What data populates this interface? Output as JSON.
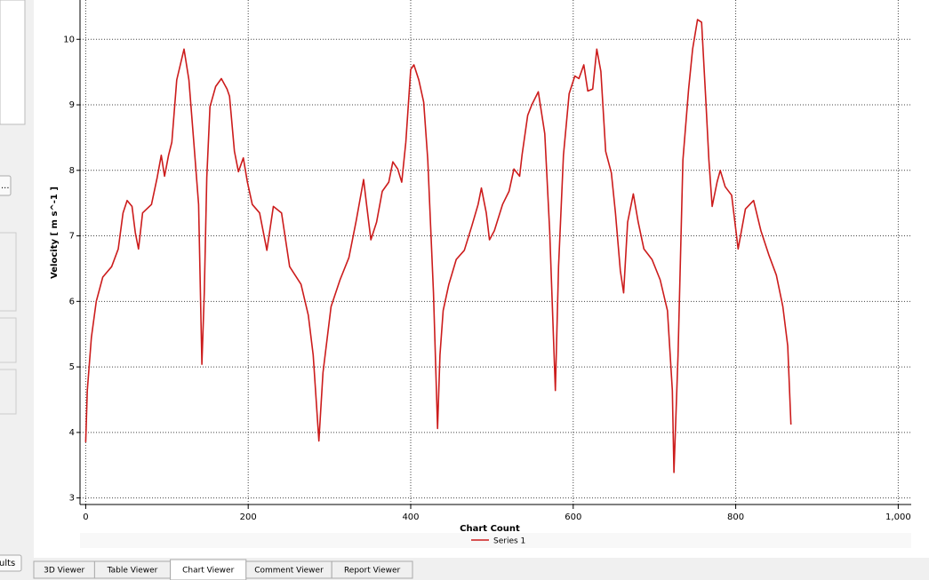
{
  "chart_data": {
    "type": "line",
    "x_label": "Chart Count",
    "y_label": "Velocity [ m s^-1 ]",
    "xlim": [
      -7,
      1016
    ],
    "ylim": [
      2.9,
      10.6
    ],
    "xticks": [
      0,
      200,
      400,
      600,
      800,
      {
        "value": 1000,
        "label": "1,000"
      }
    ],
    "yticks": [
      3,
      4,
      5,
      6,
      7,
      8,
      9,
      10
    ],
    "grid": true,
    "legend": "bottom",
    "x": [
      0,
      2,
      7,
      13,
      21,
      32,
      40,
      46,
      51,
      57,
      61,
      65,
      70,
      81,
      88,
      93,
      97,
      102,
      106,
      112,
      121,
      127,
      133,
      139,
      143,
      146,
      149,
      153,
      160,
      167,
      174,
      177,
      183,
      188,
      194,
      199,
      205,
      214,
      223,
      231,
      241,
      251,
      265,
      274,
      280,
      287,
      292,
      302,
      313,
      324,
      333,
      342,
      346,
      351,
      358,
      365,
      373,
      378,
      384,
      389,
      394,
      400,
      404,
      410,
      416,
      421,
      428,
      433,
      436,
      440,
      447,
      456,
      466,
      475,
      483,
      487,
      493,
      497,
      503,
      513,
      521,
      527,
      534,
      537,
      544,
      549,
      557,
      565,
      571,
      578,
      582,
      588,
      595,
      602,
      607,
      613,
      618,
      624,
      629,
      634,
      640,
      647,
      652,
      658,
      662,
      667,
      674,
      680,
      687,
      697,
      707,
      716,
      722,
      724,
      729,
      735,
      742,
      747,
      753,
      758,
      763,
      767,
      771,
      777,
      781,
      787,
      795,
      803,
      812,
      822,
      831,
      841,
      850,
      858,
      864,
      868
    ],
    "series": [
      {
        "name": "Series 1",
        "color": "#cc1c1c",
        "values": [
          3.85,
          4.64,
          5.45,
          6.0,
          6.37,
          6.53,
          6.8,
          7.35,
          7.54,
          7.45,
          7.05,
          6.8,
          7.35,
          7.48,
          7.89,
          8.23,
          7.91,
          8.23,
          8.43,
          9.38,
          9.85,
          9.38,
          8.43,
          7.48,
          5.04,
          6.13,
          7.89,
          8.97,
          9.28,
          9.4,
          9.24,
          9.13,
          8.29,
          7.98,
          8.19,
          7.82,
          7.48,
          7.35,
          6.78,
          7.45,
          7.35,
          6.53,
          6.26,
          5.79,
          5.18,
          3.87,
          4.91,
          5.92,
          6.33,
          6.67,
          7.24,
          7.86,
          7.45,
          6.94,
          7.21,
          7.68,
          7.82,
          8.13,
          8.02,
          7.82,
          8.43,
          9.54,
          9.61,
          9.38,
          9.04,
          8.16,
          6.13,
          4.06,
          5.18,
          5.86,
          6.26,
          6.64,
          6.78,
          7.14,
          7.48,
          7.73,
          7.35,
          6.94,
          7.08,
          7.48,
          7.68,
          8.02,
          7.91,
          8.23,
          8.84,
          9.0,
          9.2,
          8.56,
          7.08,
          4.64,
          6.53,
          8.23,
          9.17,
          9.44,
          9.4,
          9.61,
          9.21,
          9.24,
          9.85,
          9.51,
          8.29,
          7.96,
          7.35,
          6.47,
          6.13,
          7.21,
          7.64,
          7.21,
          6.8,
          6.64,
          6.33,
          5.86,
          4.64,
          3.39,
          5.18,
          8.16,
          9.24,
          9.85,
          10.3,
          10.26,
          9.11,
          8.16,
          7.45,
          7.82,
          8.0,
          7.75,
          7.62,
          6.8,
          7.41,
          7.54,
          7.08,
          6.7,
          6.4,
          5.92,
          5.32,
          4.12
        ]
      }
    ]
  },
  "left_panel": {
    "button": "...",
    "results_button": "ults"
  },
  "tabs": [
    "3D Viewer",
    "Table Viewer",
    "Chart Viewer",
    "Comment Viewer",
    "Report Viewer"
  ]
}
